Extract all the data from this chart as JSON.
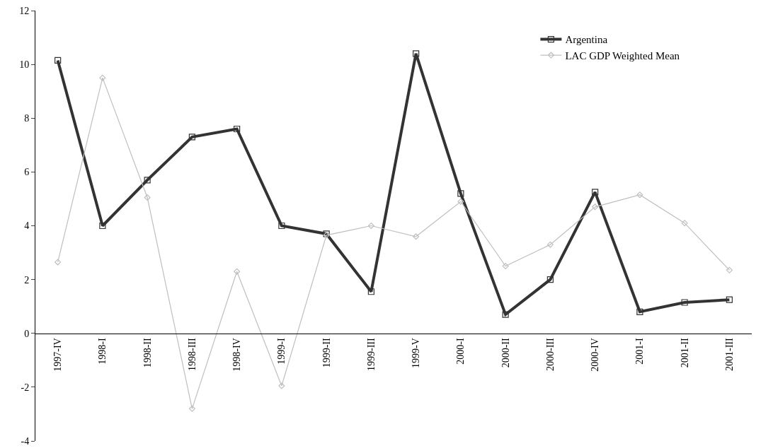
{
  "chart_data": {
    "type": "line",
    "categories": [
      "1997-IV",
      "1998-I",
      "1998-II",
      "1998-III",
      "1998-IV",
      "1999-I",
      "1999-II",
      "1999-III",
      "1999-V",
      "2000-I",
      "2000-II",
      "2000-III",
      "2000-IV",
      "2001-I",
      "2001-II",
      "2001-III"
    ],
    "series": [
      {
        "name": "Argentina",
        "color": "#333333",
        "marker": "square",
        "values": [
          10.15,
          4.0,
          5.7,
          7.3,
          7.6,
          4.0,
          3.7,
          1.55,
          10.4,
          5.2,
          0.7,
          2.0,
          5.25,
          0.8,
          1.15,
          1.25
        ]
      },
      {
        "name": "LAC GDP Weighted Mean",
        "color": "#bfbfbf",
        "marker": "diamond",
        "values": [
          2.65,
          9.5,
          5.05,
          -2.8,
          2.3,
          -1.95,
          3.65,
          4.0,
          3.6,
          4.9,
          2.5,
          3.3,
          4.7,
          5.15,
          4.1,
          2.35
        ]
      }
    ],
    "ylim": [
      -4,
      12
    ],
    "yticks": [
      -4,
      -2,
      0,
      2,
      4,
      6,
      8,
      10,
      12
    ],
    "grid": false,
    "legend": "top right",
    "line_style": "solid"
  }
}
